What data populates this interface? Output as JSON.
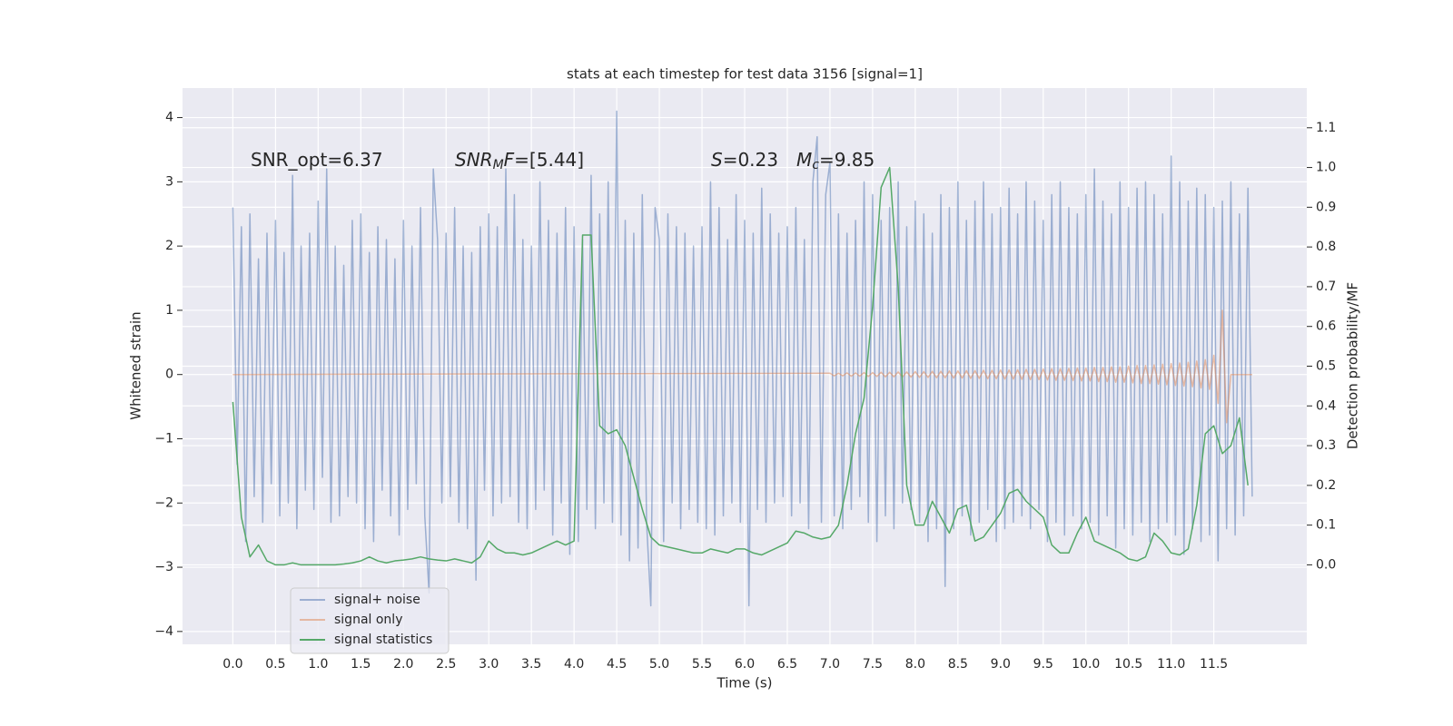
{
  "chart_data": {
    "type": "line",
    "title": "stats at each timestep for test data 3156 [signal=1]",
    "xlabel": "Time (s)",
    "ylabel": "Whitened strain",
    "y2label": "Detection probability/MF",
    "xlim": [
      -0.59,
      12.59
    ],
    "ylim": [
      -4.2,
      4.46
    ],
    "y2lim": [
      -0.2,
      1.2
    ],
    "xticks": [
      {
        "value": 0,
        "label": "0.0"
      },
      0.5,
      {
        "value": 1,
        "label": "1.0"
      },
      1.5,
      {
        "value": 2,
        "label": "2.0"
      },
      2.5,
      {
        "value": 3,
        "label": "3.0"
      },
      3.5,
      {
        "value": 4,
        "label": "4.0"
      },
      4.5,
      {
        "value": 5,
        "label": "5.0"
      },
      5.5,
      {
        "value": 6,
        "label": "6.0"
      },
      6.5,
      {
        "value": 7,
        "label": "7.0"
      },
      7.5,
      {
        "value": 8,
        "label": "8.0"
      },
      8.5,
      {
        "value": 9,
        "label": "9.0"
      },
      9.5,
      {
        "value": 10,
        "label": "10.0"
      },
      10.5,
      {
        "value": 11,
        "label": "11.0"
      },
      11.5
    ],
    "yticks": [
      {
        "value": -4,
        "label": "−4"
      },
      {
        "value": -3,
        "label": "−3"
      },
      {
        "value": -2,
        "label": "−2"
      },
      {
        "value": -1,
        "label": "−1"
      },
      0,
      1,
      2,
      3,
      4
    ],
    "y2ticks": [
      {
        "value": 0,
        "label": "0.0"
      },
      0.1,
      0.2,
      0.3,
      0.4,
      0.5,
      0.6,
      0.7,
      0.8,
      0.9,
      {
        "value": 1,
        "label": "1.0"
      },
      1.1
    ],
    "grid": true,
    "legend": "lower left",
    "annotations": [
      [
        {
          "text": "SNR_opt=6.37"
        }
      ],
      [
        {
          "text": "SNR",
          "style": "italic"
        },
        {
          "text": "M",
          "style": "italic-sub"
        },
        {
          "text": "F",
          "style": "italic"
        },
        {
          "text": "=[5.44]"
        }
      ],
      [
        {
          "text": "S",
          "style": "italic"
        },
        {
          "text": "=0.23"
        }
      ],
      [
        {
          "text": "M",
          "style": "italic"
        },
        {
          "text": "c",
          "style": "italic-sub"
        },
        {
          "text": "=9.85"
        }
      ]
    ],
    "series": [
      {
        "name": "signal+ noise",
        "color": "#4c72b0",
        "opacity": 0.5,
        "x": [
          0.0,
          0.05,
          0.1,
          0.15,
          0.2,
          0.25,
          0.3,
          0.35,
          0.4,
          0.45,
          0.5,
          0.55,
          0.6,
          0.65,
          0.7,
          0.75,
          0.8,
          0.85,
          0.9,
          0.95,
          1.0,
          1.05,
          1.1,
          1.15,
          1.2,
          1.25,
          1.3,
          1.35,
          1.4,
          1.45,
          1.5,
          1.55,
          1.6,
          1.65,
          1.7,
          1.75,
          1.8,
          1.85,
          1.9,
          1.95,
          2.0,
          2.05,
          2.1,
          2.15,
          2.2,
          2.25,
          2.3,
          2.35,
          2.4,
          2.45,
          2.5,
          2.55,
          2.6,
          2.65,
          2.7,
          2.75,
          2.8,
          2.85,
          2.9,
          2.95,
          3.0,
          3.05,
          3.1,
          3.15,
          3.2,
          3.25,
          3.3,
          3.35,
          3.4,
          3.45,
          3.5,
          3.55,
          3.6,
          3.65,
          3.7,
          3.75,
          3.8,
          3.85,
          3.9,
          3.95,
          4.0,
          4.05,
          4.1,
          4.15,
          4.2,
          4.25,
          4.3,
          4.35,
          4.4,
          4.45,
          4.5,
          4.55,
          4.6,
          4.65,
          4.7,
          4.75,
          4.8,
          4.85,
          4.9,
          4.95,
          5.0,
          5.05,
          5.1,
          5.15,
          5.2,
          5.25,
          5.3,
          5.35,
          5.4,
          5.45,
          5.5,
          5.55,
          5.6,
          5.65,
          5.7,
          5.75,
          5.8,
          5.85,
          5.9,
          5.95,
          6.0,
          6.05,
          6.1,
          6.15,
          6.2,
          6.25,
          6.3,
          6.35,
          6.4,
          6.45,
          6.5,
          6.55,
          6.6,
          6.65,
          6.7,
          6.75,
          6.8,
          6.85,
          6.9,
          6.95,
          7.0,
          7.05,
          7.1,
          7.15,
          7.2,
          7.25,
          7.3,
          7.35,
          7.4,
          7.45,
          7.5,
          7.55,
          7.6,
          7.65,
          7.7,
          7.75,
          7.8,
          7.85,
          7.9,
          7.95,
          8.0,
          8.05,
          8.1,
          8.15,
          8.2,
          8.25,
          8.3,
          8.35,
          8.4,
          8.45,
          8.5,
          8.55,
          8.6,
          8.65,
          8.7,
          8.75,
          8.8,
          8.85,
          8.9,
          8.95,
          9.0,
          9.05,
          9.1,
          9.15,
          9.2,
          9.25,
          9.3,
          9.35,
          9.4,
          9.45,
          9.5,
          9.55,
          9.6,
          9.65,
          9.7,
          9.75,
          9.8,
          9.85,
          9.9,
          9.95,
          10.0,
          10.05,
          10.1,
          10.15,
          10.2,
          10.25,
          10.3,
          10.35,
          10.4,
          10.45,
          10.5,
          10.55,
          10.6,
          10.65,
          10.7,
          10.75,
          10.8,
          10.85,
          10.9,
          10.95,
          11.0,
          11.05,
          11.1,
          11.15,
          11.2,
          11.25,
          11.3,
          11.35,
          11.4,
          11.45,
          11.5,
          11.55,
          11.6,
          11.65,
          11.7,
          11.75,
          11.8,
          11.85,
          11.9,
          11.95
        ],
        "values": [
          2.6,
          -1.4,
          2.3,
          -2.6,
          2.5,
          -1.9,
          1.8,
          -2.3,
          2.2,
          -1.7,
          2.4,
          -2.2,
          1.9,
          -2.0,
          3.1,
          -2.4,
          2.0,
          -1.8,
          2.2,
          -2.1,
          2.7,
          -1.6,
          3.2,
          -2.3,
          2.0,
          -2.2,
          1.7,
          -1.9,
          2.4,
          -2.0,
          2.5,
          -2.4,
          1.9,
          -2.6,
          2.3,
          -1.8,
          2.1,
          -2.2,
          1.8,
          -2.5,
          2.4,
          -2.1,
          2.0,
          -1.7,
          2.6,
          -2.2,
          -3.4,
          3.2,
          2.1,
          -2.0,
          2.2,
          -1.9,
          2.6,
          -2.3,
          2.0,
          -2.4,
          1.9,
          -3.2,
          2.3,
          -1.8,
          2.5,
          -2.2,
          2.3,
          -2.0,
          3.2,
          -1.9,
          2.8,
          -2.3,
          2.1,
          -2.4,
          2.0,
          -2.1,
          3.0,
          -1.8,
          2.4,
          -2.5,
          2.2,
          -2.0,
          2.6,
          -2.8,
          2.3,
          -2.6,
          2.1,
          -2.1,
          3.1,
          -2.4,
          2.5,
          -2.0,
          3.0,
          -2.3,
          4.1,
          -2.5,
          2.4,
          -2.9,
          2.2,
          -2.7,
          2.8,
          -2.3,
          -3.6,
          2.6,
          2.1,
          -2.6,
          2.5,
          -2.0,
          2.3,
          -2.4,
          2.2,
          -2.1,
          2.0,
          -2.3,
          2.3,
          -2.4,
          3.0,
          -2.5,
          2.6,
          -2.2,
          2.1,
          -2.0,
          2.8,
          -2.3,
          2.4,
          -3.6,
          2.2,
          -2.1,
          2.9,
          -2.3,
          2.5,
          -2.0,
          2.2,
          -1.9,
          2.3,
          -2.2,
          2.6,
          -2.0,
          2.1,
          -2.4,
          3.0,
          3.7,
          -2.3,
          2.8,
          3.3,
          -2.2,
          2.5,
          -2.4,
          2.2,
          -2.1,
          2.4,
          -1.9,
          3.0,
          -2.3,
          2.8,
          -2.6,
          2.4,
          -2.2,
          2.6,
          -2.4,
          3.0,
          -2.0,
          2.3,
          -2.1,
          2.7,
          -2.3,
          2.5,
          -2.6,
          2.2,
          -2.4,
          2.8,
          -3.3,
          2.6,
          -2.4,
          3.0,
          -2.2,
          2.4,
          -2.5,
          2.7,
          -2.3,
          3.0,
          -2.1,
          2.5,
          -2.6,
          2.6,
          -2.4,
          2.9,
          -2.3,
          2.5,
          -2.2,
          3.0,
          -2.4,
          2.7,
          -2.1,
          2.4,
          -2.6,
          2.8,
          -2.3,
          3.0,
          -2.5,
          2.6,
          -2.2,
          2.5,
          -2.4,
          2.8,
          -2.3,
          3.2,
          -2.5,
          2.7,
          -2.2,
          2.5,
          -2.7,
          3.0,
          -2.4,
          2.6,
          -2.5,
          2.9,
          -2.3,
          3.0,
          -2.6,
          2.8,
          -2.4,
          2.5,
          -2.3,
          3.4,
          -2.5,
          3.0,
          -2.8,
          2.7,
          -2.4,
          2.9,
          -2.6,
          2.8,
          -2.5,
          2.6,
          -2.9,
          2.7,
          -2.4,
          3.0,
          -2.5,
          2.5,
          -2.2,
          2.9,
          -1.9
        ]
      },
      {
        "name": "signal only",
        "color": "#dd8452",
        "opacity": 0.5,
        "x": [
          0.0,
          7.0,
          7.05,
          7.1,
          7.15,
          7.2,
          7.25,
          7.3,
          7.35,
          7.4,
          7.45,
          7.5,
          7.55,
          7.6,
          7.65,
          7.7,
          7.75,
          7.8,
          7.85,
          7.9,
          7.95,
          8.0,
          8.05,
          8.1,
          8.15,
          8.2,
          8.25,
          8.3,
          8.35,
          8.4,
          8.45,
          8.5,
          8.55,
          8.6,
          8.65,
          8.7,
          8.75,
          8.8,
          8.85,
          8.9,
          8.95,
          9.0,
          9.05,
          9.1,
          9.15,
          9.2,
          9.25,
          9.3,
          9.35,
          9.4,
          9.45,
          9.5,
          9.55,
          9.6,
          9.65,
          9.7,
          9.75,
          9.8,
          9.85,
          9.9,
          9.95,
          10.0,
          10.05,
          10.1,
          10.15,
          10.2,
          10.25,
          10.3,
          10.35,
          10.4,
          10.45,
          10.5,
          10.55,
          10.6,
          10.65,
          10.7,
          10.75,
          10.8,
          10.85,
          10.9,
          10.95,
          11.0,
          11.05,
          11.1,
          11.15,
          11.2,
          11.25,
          11.3,
          11.35,
          11.4,
          11.45,
          11.5,
          11.55,
          11.6,
          11.65,
          11.7,
          11.75,
          11.8,
          11.85,
          11.9,
          11.95
        ],
        "values": [
          0,
          0.02,
          -0.02,
          0.02,
          -0.02,
          0.025,
          -0.025,
          0.025,
          -0.025,
          0.03,
          -0.03,
          0.03,
          -0.03,
          0.035,
          -0.035,
          0.035,
          -0.035,
          0.04,
          -0.04,
          0.04,
          -0.04,
          0.045,
          -0.045,
          0.045,
          -0.045,
          0.05,
          -0.05,
          0.05,
          -0.05,
          0.055,
          -0.055,
          0.055,
          -0.055,
          0.06,
          -0.06,
          0.06,
          -0.06,
          0.065,
          -0.065,
          0.065,
          -0.065,
          0.07,
          -0.07,
          0.07,
          -0.07,
          0.075,
          -0.075,
          0.08,
          -0.08,
          0.08,
          -0.08,
          0.085,
          -0.085,
          0.09,
          -0.09,
          0.09,
          -0.09,
          0.095,
          -0.095,
          0.1,
          -0.1,
          0.1,
          -0.1,
          0.11,
          -0.11,
          0.11,
          -0.11,
          0.12,
          -0.12,
          0.12,
          -0.12,
          0.13,
          -0.13,
          0.14,
          -0.14,
          0.14,
          -0.14,
          0.15,
          -0.15,
          0.16,
          -0.16,
          0.17,
          -0.17,
          0.18,
          -0.18,
          0.19,
          -0.19,
          0.21,
          -0.21,
          0.23,
          -0.23,
          0.3,
          -0.45,
          1.0,
          -0.75,
          0,
          0,
          0,
          0,
          0,
          0
        ]
      },
      {
        "name": "signal statistics",
        "color": "#55a868",
        "opacity": 1,
        "axis": "y2",
        "x": [
          0.0,
          0.1,
          0.2,
          0.3,
          0.4,
          0.5,
          0.6,
          0.7,
          0.8,
          0.9,
          1.0,
          1.1,
          1.2,
          1.3,
          1.4,
          1.5,
          1.6,
          1.7,
          1.8,
          1.9,
          2.0,
          2.1,
          2.2,
          2.3,
          2.4,
          2.5,
          2.6,
          2.7,
          2.8,
          2.9,
          3.0,
          3.1,
          3.2,
          3.3,
          3.4,
          3.5,
          3.6,
          3.7,
          3.8,
          3.9,
          4.0,
          4.1,
          4.2,
          4.3,
          4.4,
          4.5,
          4.6,
          4.7,
          4.8,
          4.9,
          5.0,
          5.1,
          5.2,
          5.3,
          5.4,
          5.5,
          5.6,
          5.7,
          5.8,
          5.9,
          6.0,
          6.1,
          6.2,
          6.3,
          6.4,
          6.5,
          6.6,
          6.7,
          6.8,
          6.9,
          7.0,
          7.1,
          7.2,
          7.3,
          7.4,
          7.5,
          7.6,
          7.7,
          7.8,
          7.9,
          8.0,
          8.1,
          8.2,
          8.3,
          8.4,
          8.5,
          8.6,
          8.7,
          8.8,
          8.9,
          9.0,
          9.1,
          9.2,
          9.3,
          9.4,
          9.5,
          9.6,
          9.7,
          9.8,
          9.9,
          10.0,
          10.1,
          10.2,
          10.3,
          10.4,
          10.5,
          10.6,
          10.7,
          10.8,
          10.9,
          11.0,
          11.1,
          11.2,
          11.3,
          11.4,
          11.5,
          11.6,
          11.7,
          11.8,
          11.9
        ],
        "values": [
          0.41,
          0.12,
          0.02,
          0.05,
          0.01,
          0.0,
          0.0,
          0.005,
          0.0,
          0.0,
          0.0,
          0.0,
          0.0,
          0.002,
          0.005,
          0.01,
          0.02,
          0.01,
          0.005,
          0.01,
          0.012,
          0.015,
          0.02,
          0.015,
          0.012,
          0.01,
          0.015,
          0.01,
          0.005,
          0.02,
          0.06,
          0.04,
          0.03,
          0.03,
          0.025,
          0.03,
          0.04,
          0.05,
          0.06,
          0.05,
          0.06,
          0.83,
          0.83,
          0.35,
          0.33,
          0.34,
          0.3,
          0.22,
          0.14,
          0.07,
          0.05,
          0.045,
          0.04,
          0.035,
          0.03,
          0.03,
          0.04,
          0.035,
          0.03,
          0.04,
          0.04,
          0.03,
          0.025,
          0.035,
          0.045,
          0.055,
          0.085,
          0.08,
          0.07,
          0.065,
          0.07,
          0.1,
          0.2,
          0.33,
          0.42,
          0.65,
          0.95,
          1.0,
          0.7,
          0.2,
          0.1,
          0.1,
          0.16,
          0.12,
          0.08,
          0.14,
          0.15,
          0.06,
          0.07,
          0.1,
          0.13,
          0.18,
          0.19,
          0.16,
          0.14,
          0.12,
          0.05,
          0.03,
          0.03,
          0.08,
          0.12,
          0.06,
          0.05,
          0.04,
          0.03,
          0.015,
          0.01,
          0.02,
          0.08,
          0.06,
          0.03,
          0.025,
          0.04,
          0.15,
          0.33,
          0.35,
          0.28,
          0.3,
          0.37,
          0.2
        ]
      }
    ]
  }
}
